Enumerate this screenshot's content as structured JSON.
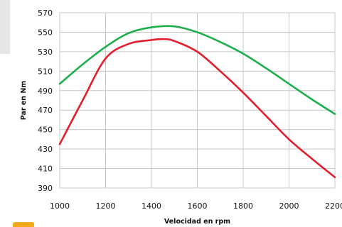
{
  "chart_data": {
    "type": "line",
    "title": "",
    "xlabel": "Velocidad en rpm",
    "ylabel": "Par en Nm",
    "xlim": [
      1000,
      2200
    ],
    "ylim": [
      390,
      570
    ],
    "x_ticks": [
      1000,
      1200,
      1400,
      1600,
      1800,
      2000,
      2200
    ],
    "x_tick_labels": [
      "1000",
      "1200",
      "1400",
      "1600",
      "1800",
      "2000",
      "2200"
    ],
    "y_ticks": [
      390,
      410,
      430,
      450,
      470,
      490,
      510,
      530,
      550,
      570
    ],
    "y_tick_labels": [
      "390",
      "410",
      "430",
      "450",
      "470",
      "490",
      "510",
      "530",
      "550",
      "570"
    ],
    "grid": true,
    "legend": "none",
    "series": [
      {
        "color": "#1fae4b",
        "x": [
          1000,
          1100,
          1200,
          1300,
          1400,
          1500,
          1600,
          1700,
          1800,
          1900,
          2000,
          2100,
          2200
        ],
        "y": [
          497,
          517,
          535,
          549,
          555,
          556,
          550,
          540,
          528,
          513,
          497,
          481,
          466
        ]
      },
      {
        "color": "#e31e2d",
        "x": [
          1000,
          1100,
          1200,
          1300,
          1400,
          1450,
          1500,
          1600,
          1700,
          1800,
          1900,
          2000,
          2100,
          2200
        ],
        "y": [
          435,
          480,
          523,
          538,
          542,
          543,
          541,
          530,
          510,
          488,
          464,
          440,
          420,
          401
        ]
      }
    ]
  }
}
